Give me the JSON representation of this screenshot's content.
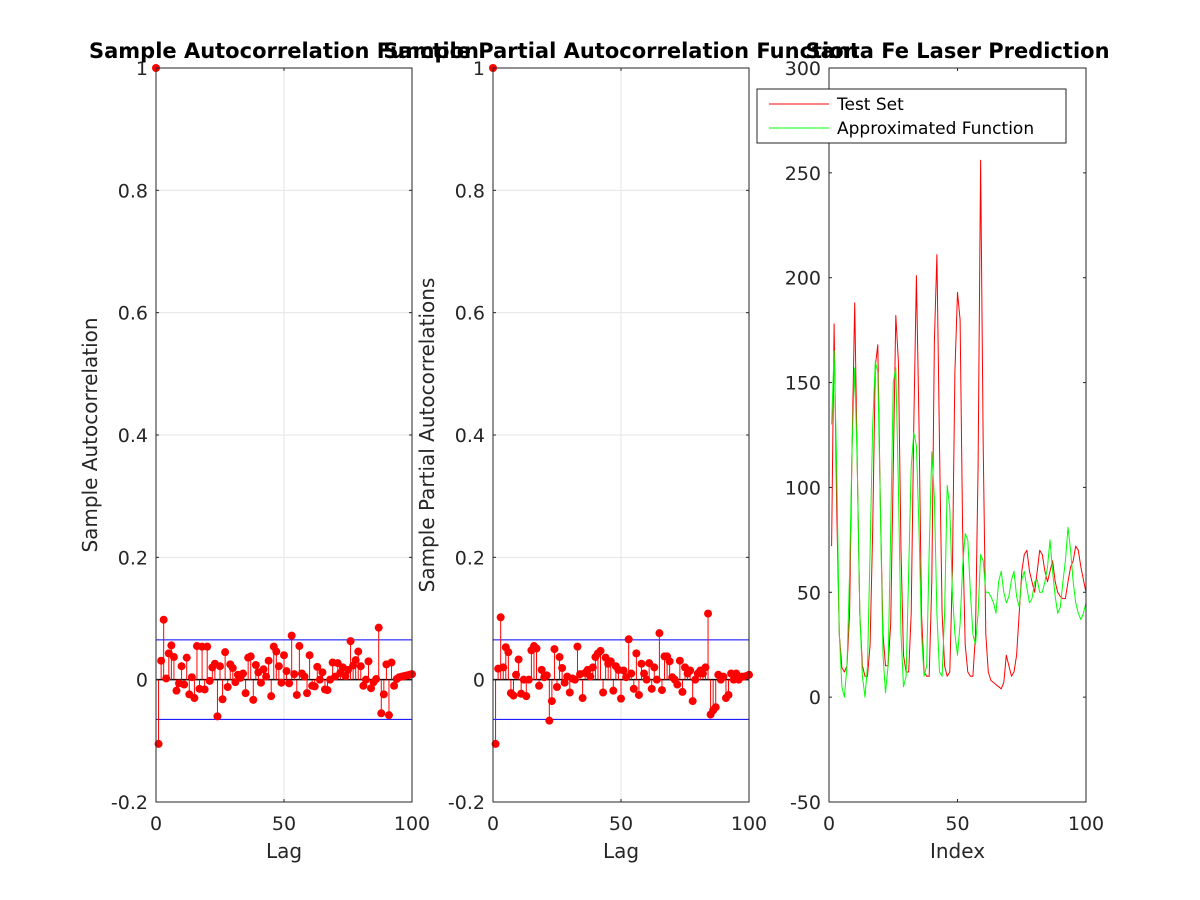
{
  "figure": {
    "panels": [
      {
        "title": "Sample Autocorrelation Function"
      },
      {
        "title": "Sample Partial Autocorrelation Function"
      },
      {
        "title": "Santa Fe Laser Prediction"
      }
    ]
  },
  "colors": {
    "stem": "#ff0000",
    "bounds": "#0000ff",
    "zero_line": "#000000",
    "test_set": "#ff0000",
    "approx": "#00ff00",
    "grid": "#e6e6e6",
    "axis": "#262626"
  },
  "chart_data": [
    {
      "type": "stem",
      "title": "Sample Autocorrelation Function",
      "xlabel": "Lag",
      "ylabel": "Sample Autocorrelation",
      "xlim": [
        0,
        100
      ],
      "ylim": [
        -0.2,
        1
      ],
      "xticks": [
        "0",
        "50",
        "100"
      ],
      "yticks": [
        "-0.2",
        "0",
        "0.2",
        "0.4",
        "0.6",
        "0.8",
        "1"
      ],
      "grid": true,
      "bounds": [
        0.065,
        -0.065
      ],
      "lags": [
        0,
        1,
        2,
        3,
        4,
        5,
        6,
        7,
        8,
        9,
        10,
        11,
        12,
        13,
        14,
        15,
        16,
        17,
        18,
        19,
        20,
        21,
        22,
        23,
        24,
        25,
        26,
        27,
        28,
        29,
        30,
        31,
        32,
        33,
        34,
        35,
        36,
        37,
        38,
        39,
        40,
        41,
        42,
        43,
        44,
        45,
        46,
        47,
        48,
        49,
        50,
        51,
        52,
        53,
        54,
        55,
        56,
        57,
        58,
        59,
        60,
        61,
        62,
        63,
        64,
        65,
        66,
        67,
        68,
        69,
        70,
        71,
        72,
        73,
        74,
        75,
        76,
        77,
        78,
        79,
        80,
        81,
        82,
        83,
        84,
        85,
        86,
        87,
        88,
        89,
        90,
        91,
        92,
        93,
        94,
        95,
        96,
        97,
        98,
        99,
        100
      ],
      "values": [
        1.0,
        -0.105,
        0.031,
        0.098,
        0.002,
        0.043,
        0.056,
        0.037,
        -0.018,
        -0.006,
        0.022,
        -0.008,
        0.036,
        -0.024,
        0.004,
        -0.03,
        0.055,
        -0.015,
        0.054,
        -0.016,
        0.054,
        -0.002,
        0.02,
        0.026,
        -0.06,
        0.022,
        -0.032,
        0.045,
        -0.012,
        0.025,
        0.019,
        -0.004,
        0.008,
        0.003,
        0.01,
        -0.022,
        0.036,
        0.038,
        -0.033,
        0.024,
        0.012,
        -0.005,
        0.017,
        0.005,
        0.031,
        -0.027,
        0.054,
        0.046,
        0.022,
        -0.005,
        0.04,
        0.014,
        -0.006,
        0.072,
        0.009,
        -0.025,
        0.055,
        0.01,
        0.005,
        -0.022,
        0.04,
        -0.01,
        -0.011,
        0.021,
        0.0,
        0.012,
        -0.016,
        -0.017,
        0.0,
        0.028,
        0.005,
        0.027,
        0.011,
        0.02,
        0.006,
        0.016,
        0.063,
        0.023,
        0.032,
        0.046,
        0.022,
        -0.01,
        0.0,
        0.03,
        -0.014,
        -0.004,
        0.001,
        0.085,
        -0.055,
        -0.024,
        0.025,
        -0.058,
        0.028,
        -0.01,
        0.001,
        0.004,
        0.005,
        0.006,
        0.007,
        0.008,
        0.009
      ]
    },
    {
      "type": "stem",
      "title": "Sample Partial Autocorrelation Function",
      "xlabel": "Lag",
      "ylabel": "Sample Partial Autocorrelations",
      "xlim": [
        0,
        100
      ],
      "ylim": [
        -0.2,
        1
      ],
      "xticks": [
        "0",
        "50",
        "100"
      ],
      "yticks": [
        "-0.2",
        "0",
        "0.2",
        "0.4",
        "0.6",
        "0.8",
        "1"
      ],
      "grid": true,
      "bounds": [
        0.065,
        -0.065
      ],
      "lags": [
        0,
        1,
        2,
        3,
        4,
        5,
        6,
        7,
        8,
        9,
        10,
        11,
        12,
        13,
        14,
        15,
        16,
        17,
        18,
        19,
        20,
        21,
        22,
        23,
        24,
        25,
        26,
        27,
        28,
        29,
        30,
        31,
        32,
        33,
        34,
        35,
        36,
        37,
        38,
        39,
        40,
        41,
        42,
        43,
        44,
        45,
        46,
        47,
        48,
        49,
        50,
        51,
        52,
        53,
        54,
        55,
        56,
        57,
        58,
        59,
        60,
        61,
        62,
        63,
        64,
        65,
        66,
        67,
        68,
        69,
        70,
        71,
        72,
        73,
        74,
        75,
        76,
        77,
        78,
        79,
        80,
        81,
        82,
        83,
        84,
        85,
        86,
        87,
        88,
        89,
        90,
        91,
        92,
        93,
        94,
        95,
        96,
        97,
        98,
        99,
        100
      ],
      "values": [
        1.0,
        -0.105,
        0.018,
        0.102,
        0.02,
        0.053,
        0.045,
        -0.022,
        -0.026,
        0.008,
        0.033,
        -0.023,
        0.0,
        -0.027,
        0.0,
        0.048,
        0.055,
        0.051,
        -0.01,
        0.016,
        0.004,
        0.007,
        -0.067,
        -0.035,
        0.05,
        -0.012,
        0.037,
        0.019,
        -0.005,
        0.005,
        -0.021,
        0.002,
        0.0,
        0.054,
        0.009,
        -0.03,
        0.011,
        0.016,
        0.005,
        0.02,
        0.037,
        0.043,
        0.047,
        -0.021,
        0.036,
        0.026,
        0.03,
        -0.018,
        0.022,
        0.016,
        -0.031,
        0.015,
        0.004,
        0.066,
        0.01,
        -0.015,
        0.043,
        -0.025,
        0.026,
        0.01,
        0.0,
        0.027,
        -0.015,
        0.02,
        0.0,
        0.076,
        -0.017,
        0.038,
        0.038,
        0.03,
        0.004,
        0.0,
        -0.008,
        0.031,
        -0.02,
        0.02,
        0.01,
        0.015,
        -0.035,
        0.0,
        0.01,
        0.015,
        0.01,
        0.02,
        0.108,
        -0.057,
        -0.05,
        -0.045,
        0.008,
        0.0,
        0.005,
        -0.03,
        -0.025,
        0.01,
        0.0,
        0.01,
        0.0,
        0.005,
        0.005,
        0.006,
        0.008
      ]
    },
    {
      "type": "line",
      "title": "Santa Fe Laser Prediction",
      "xlabel": "Index",
      "ylabel": "",
      "xlim": [
        0,
        100
      ],
      "ylim": [
        -50,
        300
      ],
      "xticks": [
        "0",
        "50",
        "100"
      ],
      "yticks": [
        "-50",
        "0",
        "50",
        "100",
        "150",
        "200",
        "250",
        "300"
      ],
      "grid": false,
      "legend": {
        "position": "top-right"
      },
      "series": [
        {
          "name": "Test Set",
          "x": [
            1,
            2,
            3,
            4,
            5,
            6,
            7,
            8,
            9,
            10,
            11,
            12,
            13,
            14,
            15,
            16,
            17,
            18,
            19,
            20,
            21,
            22,
            23,
            24,
            25,
            26,
            27,
            28,
            29,
            30,
            31,
            32,
            33,
            34,
            35,
            36,
            37,
            38,
            39,
            40,
            41,
            42,
            43,
            44,
            45,
            46,
            47,
            48,
            49,
            50,
            51,
            52,
            53,
            54,
            55,
            56,
            57,
            58,
            59,
            60,
            61,
            62,
            63,
            64,
            65,
            66,
            67,
            68,
            69,
            70,
            71,
            72,
            73,
            74,
            75,
            76,
            77,
            78,
            79,
            80,
            81,
            82,
            83,
            84,
            85,
            86,
            87,
            88,
            89,
            90,
            91,
            92,
            93,
            94,
            95,
            96,
            97,
            98,
            99,
            100
          ],
          "values": [
            72,
            178,
            90,
            30,
            14,
            12,
            15,
            40,
            120,
            188,
            110,
            40,
            15,
            10,
            10,
            25,
            80,
            158,
            168,
            90,
            30,
            15,
            15,
            35,
            110,
            182,
            160,
            70,
            20,
            12,
            12,
            40,
            130,
            201,
            130,
            40,
            12,
            10,
            10,
            55,
            170,
            211,
            120,
            40,
            15,
            10,
            12,
            60,
            155,
            193,
            180,
            80,
            25,
            12,
            10,
            10,
            30,
            110,
            256,
            120,
            30,
            12,
            8,
            7,
            6,
            5,
            4,
            7,
            20,
            15,
            10,
            12,
            20,
            40,
            60,
            68,
            70,
            60,
            55,
            50,
            60,
            70,
            68,
            60,
            55,
            60,
            65,
            55,
            50,
            48,
            47,
            47,
            55,
            62,
            65,
            72,
            70,
            62,
            56,
            50
          ]
        },
        {
          "name": "Approximated Function",
          "x": [
            1,
            2,
            3,
            4,
            5,
            6,
            7,
            8,
            9,
            10,
            11,
            12,
            13,
            14,
            15,
            16,
            17,
            18,
            19,
            20,
            21,
            22,
            23,
            24,
            25,
            26,
            27,
            28,
            29,
            30,
            31,
            32,
            33,
            34,
            35,
            36,
            37,
            38,
            39,
            40,
            41,
            42,
            43,
            44,
            45,
            46,
            47,
            48,
            49,
            50,
            51,
            52,
            53,
            54,
            55,
            56,
            57,
            58,
            59,
            60,
            61,
            62,
            63,
            64,
            65,
            66,
            67,
            68,
            69,
            70,
            71,
            72,
            73,
            74,
            75,
            76,
            77,
            78,
            79,
            80,
            81,
            82,
            83,
            84,
            85,
            86,
            87,
            88,
            89,
            90,
            91,
            92,
            93,
            94,
            95,
            96,
            97,
            98,
            99,
            100
          ],
          "values": [
            130,
            165,
            110,
            30,
            5,
            0,
            15,
            60,
            120,
            157,
            110,
            40,
            10,
            0,
            15,
            70,
            130,
            160,
            155,
            90,
            20,
            2,
            15,
            80,
            150,
            157,
            100,
            30,
            5,
            10,
            60,
            110,
            126,
            120,
            80,
            30,
            10,
            15,
            70,
            117,
            95,
            40,
            12,
            10,
            40,
            101,
            90,
            50,
            30,
            20,
            35,
            62,
            78,
            75,
            50,
            30,
            25,
            40,
            68,
            65,
            50,
            50,
            48,
            45,
            40,
            55,
            60,
            50,
            45,
            48,
            56,
            60,
            48,
            43,
            56,
            60,
            52,
            45,
            47,
            55,
            56,
            50,
            50,
            55,
            62,
            75,
            60,
            48,
            40,
            43,
            55,
            65,
            81,
            70,
            55,
            45,
            40,
            37,
            40,
            45
          ]
        }
      ]
    }
  ]
}
